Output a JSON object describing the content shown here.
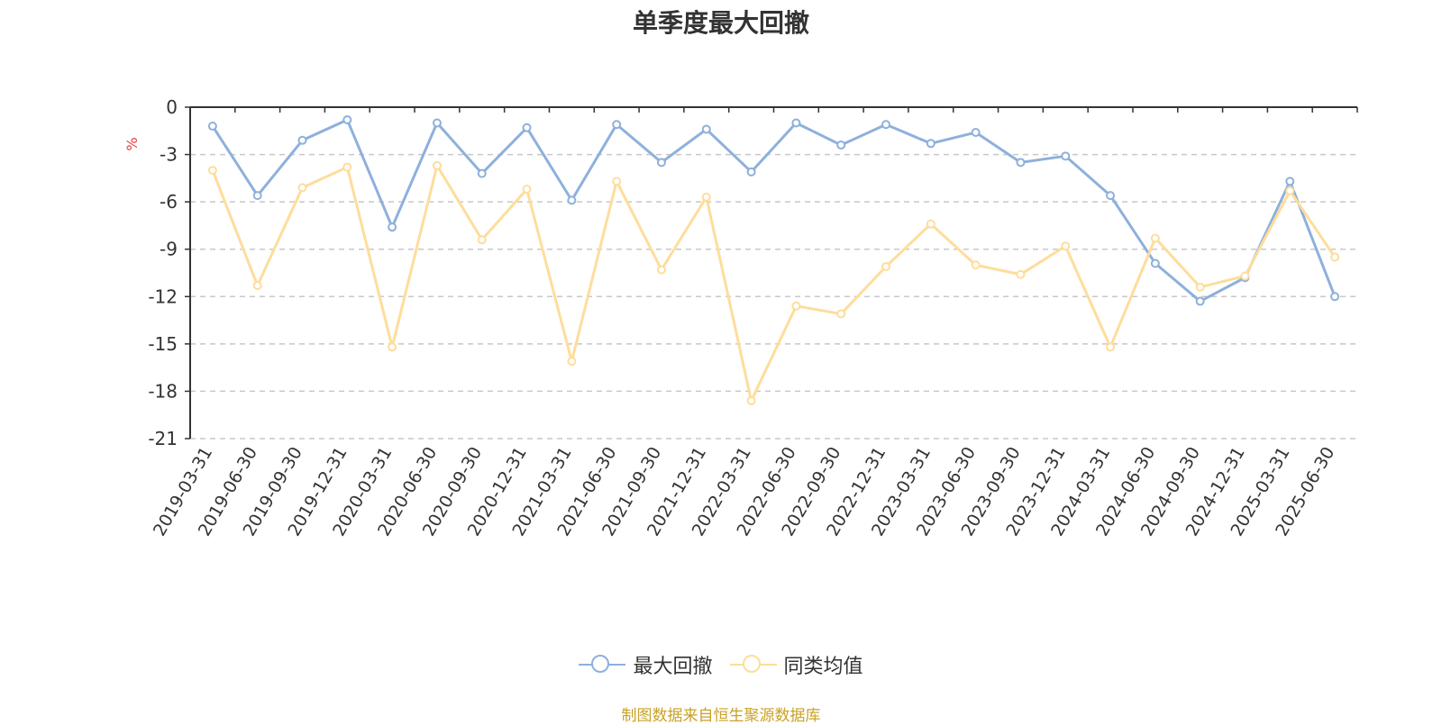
{
  "chart_data": {
    "type": "line",
    "title": "单季度最大回撤",
    "ylabel": "%",
    "ylim": [
      -21,
      0
    ],
    "yticks": [
      0,
      -3,
      -6,
      -9,
      -12,
      -15,
      -18,
      -21
    ],
    "grid": true,
    "legend_position": "bottom",
    "categories": [
      "2019-03-31",
      "2019-06-30",
      "2019-09-30",
      "2019-12-31",
      "2020-03-31",
      "2020-06-30",
      "2020-09-30",
      "2020-12-31",
      "2021-03-31",
      "2021-06-30",
      "2021-09-30",
      "2021-12-31",
      "2022-03-31",
      "2022-06-30",
      "2022-09-30",
      "2022-12-31",
      "2023-03-31",
      "2023-06-30",
      "2023-09-30",
      "2023-12-31",
      "2024-03-31",
      "2024-06-30",
      "2024-09-30",
      "2024-12-31",
      "2025-03-31",
      "2025-06-30"
    ],
    "series": [
      {
        "name": "最大回撤",
        "color": "#8eb0dc",
        "values": [
          -1.2,
          -5.6,
          -2.1,
          -0.8,
          -7.6,
          -1.0,
          -4.2,
          -1.3,
          -5.9,
          -1.1,
          -3.5,
          -1.4,
          -4.1,
          -1.0,
          -2.4,
          -1.1,
          -2.3,
          -1.6,
          -3.5,
          -3.1,
          -5.6,
          -9.9,
          -12.3,
          -10.8,
          -4.7,
          -12.0
        ]
      },
      {
        "name": "同类均值",
        "color": "#fedd9b",
        "values": [
          -4.0,
          -11.3,
          -5.1,
          -3.8,
          -15.2,
          -3.7,
          -8.4,
          -5.2,
          -16.1,
          -4.7,
          -10.3,
          -5.7,
          -18.6,
          -12.6,
          -13.1,
          -10.1,
          -7.4,
          -10.0,
          -10.6,
          -8.8,
          -15.2,
          -8.3,
          -11.4,
          -10.7,
          -5.3,
          -9.5
        ]
      }
    ]
  },
  "footer": {
    "source": "制图数据来自恒生聚源数据库"
  }
}
